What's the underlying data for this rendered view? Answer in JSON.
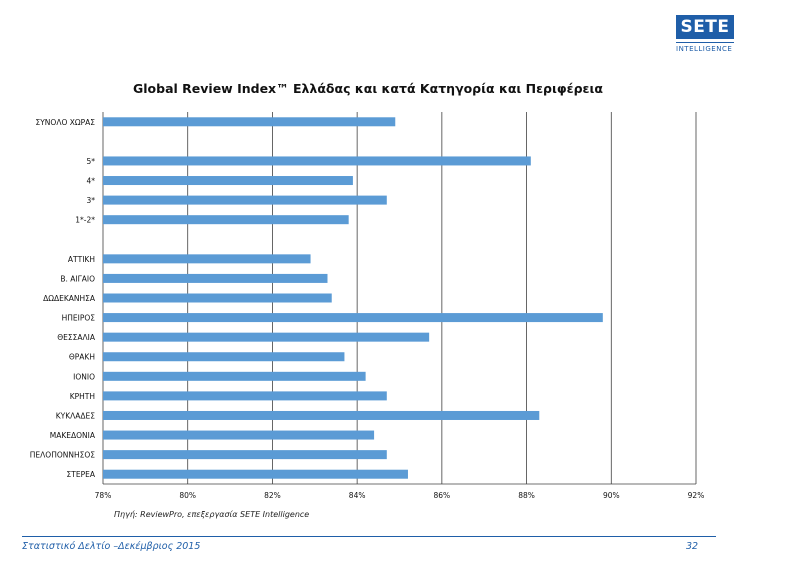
{
  "logo": {
    "brand": "SETE",
    "subtitle": "INTELLIGENCE"
  },
  "chart_data": {
    "type": "bar",
    "orientation": "horizontal",
    "title": "Global Review Index™ Ελλάδας και κατά Κατηγορία και Περιφέρεια",
    "categories": [
      "ΣΥΝΟΛΟ ΧΩΡΑΣ",
      "",
      "5*",
      "4*",
      "3*",
      "1*-2*",
      "",
      "ΑΤΤΙΚΗ",
      "Β. ΑΙΓΑΙΟ",
      "ΔΩΔΕΚΑΝΗΣΑ",
      "ΗΠΕΙΡΟΣ",
      "ΘΕΣΣΑΛΙΑ",
      "ΘΡΑΚΗ",
      "ΙΟΝΙΟ",
      "ΚΡΗΤΗ",
      "ΚΥΚΛΑΔΕΣ",
      "ΜΑΚΕΔΟΝΙΑ",
      "ΠΕΛΟΠΟΝΝΗΣΟΣ",
      "ΣΤΕΡΕΑ"
    ],
    "values": [
      84.9,
      null,
      88.1,
      83.9,
      84.7,
      83.8,
      null,
      82.9,
      83.3,
      83.4,
      89.8,
      85.7,
      83.7,
      84.2,
      84.7,
      88.3,
      84.4,
      84.7,
      85.2
    ],
    "xlim": [
      78,
      92
    ],
    "xticks": [
      78,
      80,
      82,
      84,
      86,
      88,
      90,
      92
    ],
    "xtick_labels": [
      "78%",
      "80%",
      "82%",
      "84%",
      "86%",
      "88%",
      "90%",
      "92%"
    ],
    "grid": "vertical",
    "bar_color": "#5b9bd5",
    "source": "Πηγή: ReviewPro, επεξεργασία SETE Intelligence"
  },
  "footer": {
    "left": "Στατιστικό Δελτίο –Δεκέμβριος 2015",
    "page": "32"
  },
  "colors": {
    "brand": "#1f5ea8",
    "bar": "#5b9bd5",
    "grid": "#404040"
  }
}
